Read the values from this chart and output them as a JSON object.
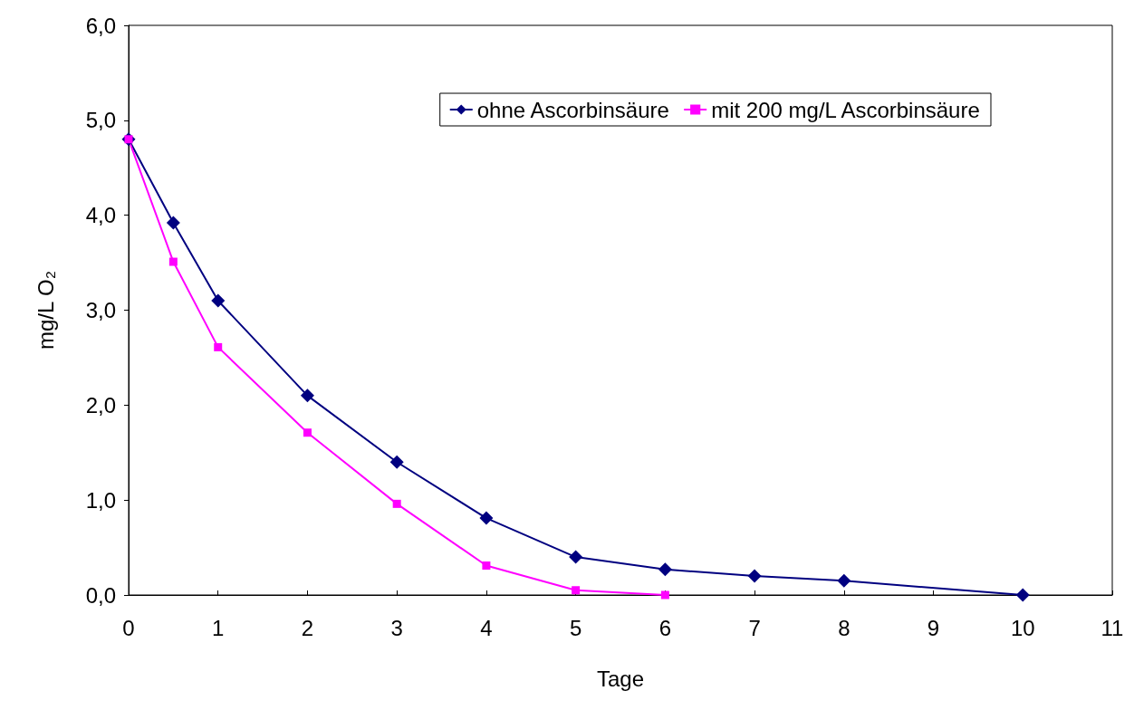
{
  "chart_data": {
    "type": "line",
    "xlabel": "Tage",
    "ylabel": "mg/L O₂",
    "xlim": [
      0,
      11
    ],
    "xticks": [
      0,
      1,
      2,
      3,
      4,
      5,
      6,
      7,
      8,
      9,
      10,
      11
    ],
    "ylim": [
      0,
      6
    ],
    "yticks": [
      {
        "value": 0,
        "label": "0,0"
      },
      {
        "value": 1,
        "label": "1,0"
      },
      {
        "value": 2,
        "label": "2,0"
      },
      {
        "value": 3,
        "label": "3,0"
      },
      {
        "value": 4,
        "label": "4,0"
      },
      {
        "value": 5,
        "label": "5,0"
      },
      {
        "value": 6,
        "label": "6,0"
      }
    ],
    "grid": false,
    "legend": "top right",
    "line_style": "solid",
    "series": [
      {
        "name": "ohne Ascorbinsäure",
        "color": "#000080",
        "marker": "diamond",
        "x": [
          0,
          0.5,
          1,
          2,
          3,
          4,
          5,
          6,
          7,
          8,
          10
        ],
        "values": [
          4.8,
          3.92,
          3.1,
          2.1,
          1.4,
          0.81,
          0.4,
          0.27,
          0.2,
          0.15,
          0
        ]
      },
      {
        "name": "mit 200 mg/L Ascorbinsäure",
        "color": "#ff00ff",
        "marker": "square",
        "x": [
          0,
          0.5,
          1,
          2,
          3,
          4,
          5,
          6
        ],
        "values": [
          4.8,
          3.51,
          2.61,
          1.71,
          0.96,
          0.31,
          0.05,
          0
        ]
      }
    ]
  }
}
